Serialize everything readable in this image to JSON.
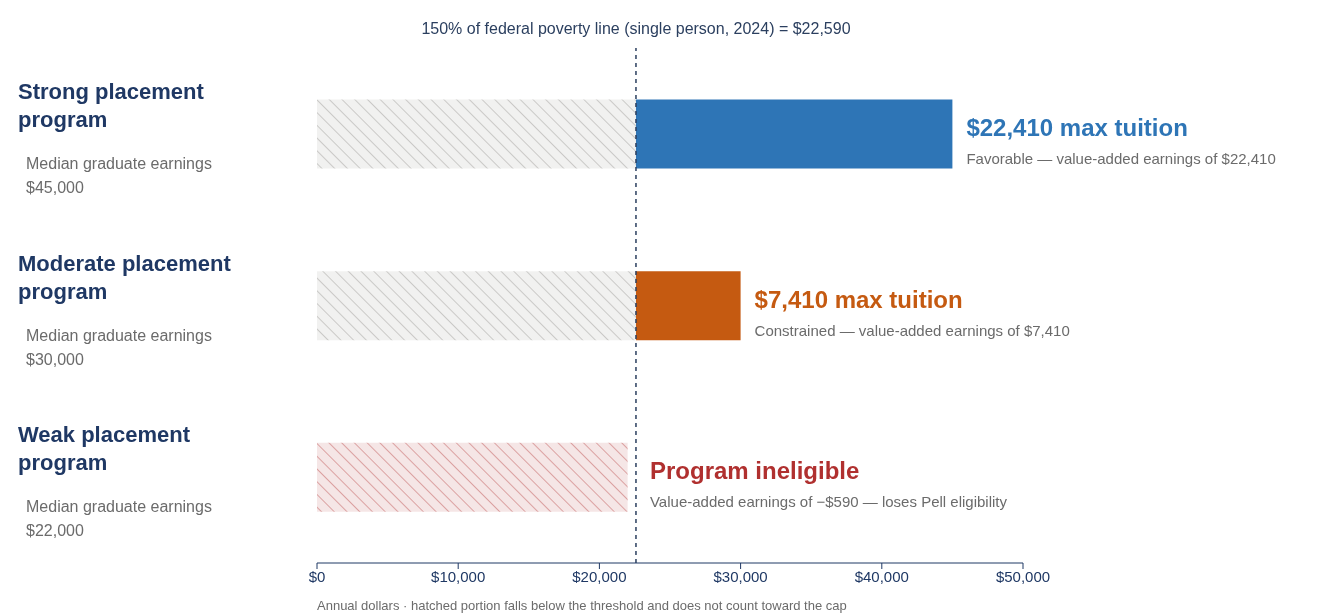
{
  "chart_data": {
    "type": "bar",
    "orientation": "horizontal",
    "stacked": true,
    "categories": [
      "Strong placement program",
      "Moderate placement program",
      "Weak placement program"
    ],
    "series": [
      {
        "colors": [
          "#8c8a84",
          "#8c8a84",
          "#b0302f"
        ],
        "values": [
          22590,
          22590,
          22000
        ]
      },
      {
        "colors": [
          "#2e75b6",
          "#c55a11",
          null
        ],
        "values": [
          22410,
          7410,
          null
        ]
      }
    ],
    "xlim": [
      0,
      50000
    ],
    "xticks": [
      {
        "value": 0,
        "label": "$0"
      },
      {
        "value": 10000,
        "label": "$10,000"
      },
      {
        "value": 20000,
        "label": "$20,000"
      },
      {
        "value": 30000,
        "label": "$30,000"
      },
      {
        "value": 40000,
        "label": "$40,000"
      },
      {
        "value": 50000,
        "label": "$50,000"
      }
    ],
    "xlabel": "Annual dollars · hatched portion falls below the threshold and does not count toward the cap",
    "ref_lines": [
      {
        "axis": "x",
        "value": 22590,
        "label": "150% of federal poverty line (single person, 2024) = $22,590",
        "color": "#2b3f5f",
        "line_style": "dashed"
      }
    ],
    "annotations": [
      "Median graduate earnings $45,000",
      {
        "text": "$22,410 max tuition",
        "x": 45000,
        "y": "Strong placement program"
      },
      "Favorable — value-added earnings of $22,410",
      "Median graduate earnings $30,000",
      {
        "text": "$7,410 max tuition",
        "x": 30000,
        "y": "Moderate placement program"
      },
      "Constrained — value-added earnings of $7,410",
      "Median graduate earnings $22,000",
      {
        "text": "Program ineligible",
        "x": 22000,
        "y": "Weak placement program"
      },
      "Value-added earnings of −$590 — loses Pell eligibility"
    ],
    "grid": false,
    "legend": false
  }
}
